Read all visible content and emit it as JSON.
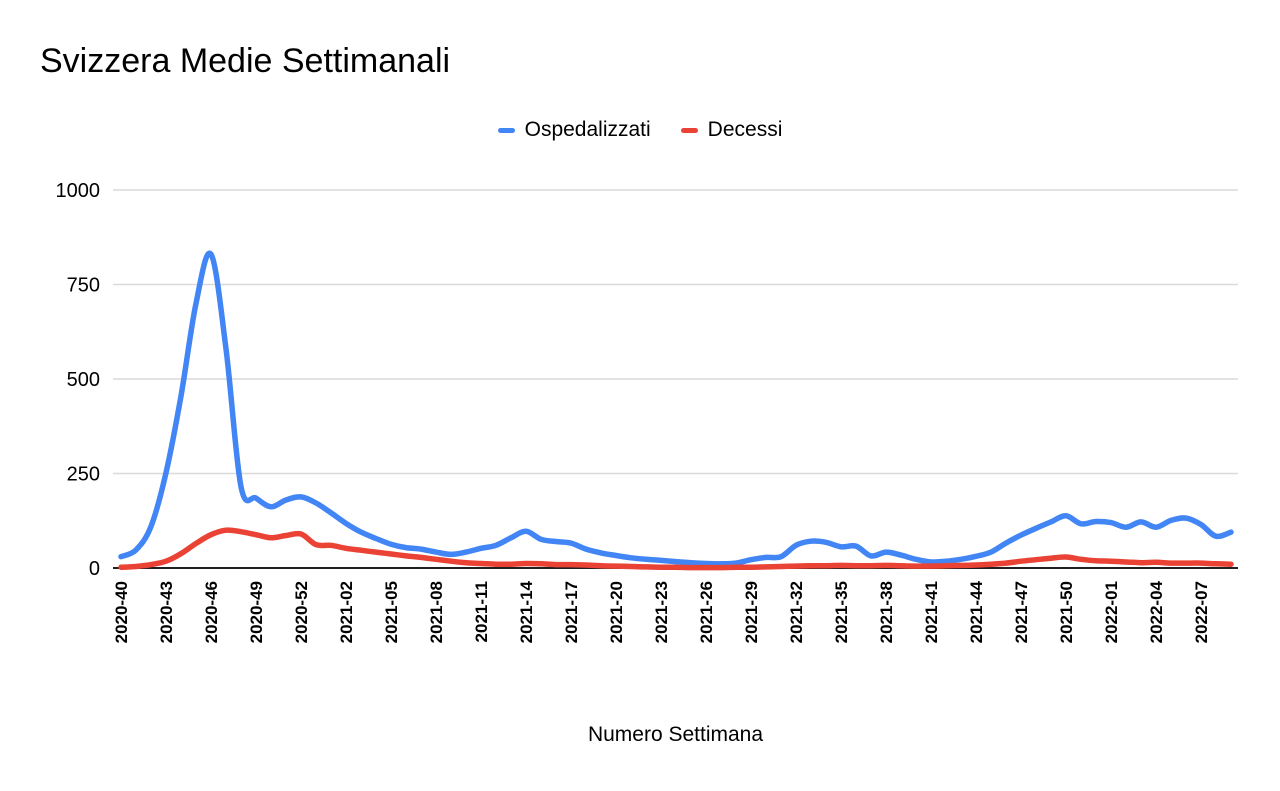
{
  "chart_data": {
    "type": "line",
    "title": "Svizzera Medie Settimanali",
    "xlabel": "Numero Settimana",
    "ylabel": "",
    "ylim": [
      0,
      1000
    ],
    "y_ticks": [
      0,
      250,
      500,
      750,
      1000
    ],
    "grid": true,
    "legend_position": "top-center",
    "line_style": "smooth",
    "colors": {
      "ospedalizzati": "#4285f4",
      "decessi": "#ea4335",
      "gridline": "#dadada",
      "axis_line": "#212121",
      "text": "#000000",
      "background": "#ffffff"
    },
    "categories": [
      "2020-40",
      "2020-41",
      "2020-42",
      "2020-43",
      "2020-44",
      "2020-45",
      "2020-46",
      "2020-47",
      "2020-48",
      "2020-49",
      "2020-50",
      "2020-51",
      "2020-52",
      "2020-53",
      "2021-01",
      "2021-02",
      "2021-03",
      "2021-04",
      "2021-05",
      "2021-06",
      "2021-07",
      "2021-08",
      "2021-09",
      "2021-10",
      "2021-11",
      "2021-12",
      "2021-13",
      "2021-14",
      "2021-15",
      "2021-16",
      "2021-17",
      "2021-18",
      "2021-19",
      "2021-20",
      "2021-21",
      "2021-22",
      "2021-23",
      "2021-24",
      "2021-25",
      "2021-26",
      "2021-27",
      "2021-28",
      "2021-29",
      "2021-30",
      "2021-31",
      "2021-32",
      "2021-33",
      "2021-34",
      "2021-35",
      "2021-36",
      "2021-37",
      "2021-38",
      "2021-39",
      "2021-40",
      "2021-41",
      "2021-42",
      "2021-43",
      "2021-44",
      "2021-45",
      "2021-46",
      "2021-47",
      "2021-48",
      "2021-49",
      "2021-50",
      "2021-51",
      "2021-52",
      "2022-01",
      "2022-02",
      "2022-03",
      "2022-04",
      "2022-05",
      "2022-06",
      "2022-07",
      "2022-08",
      "2022-09"
    ],
    "x_tick_labels": [
      "2020-40",
      "2020-43",
      "2020-46",
      "2020-49",
      "2020-52",
      "2021-02",
      "2021-05",
      "2021-08",
      "2021-11",
      "2021-14",
      "2021-17",
      "2021-20",
      "2021-23",
      "2021-26",
      "2021-29",
      "2021-32",
      "2021-35",
      "2021-38",
      "2021-41",
      "2021-44",
      "2021-47",
      "2021-50",
      "2022-01",
      "2022-04",
      "2022-07"
    ],
    "x_tick_step": 3,
    "series": [
      {
        "name": "Ospedalizzati",
        "color": "#4285f4",
        "values": [
          30,
          48,
          110,
          252,
          455,
          700,
          830,
          580,
          215,
          185,
          162,
          180,
          188,
          172,
          146,
          118,
          95,
          78,
          63,
          54,
          50,
          42,
          36,
          42,
          52,
          60,
          80,
          97,
          76,
          70,
          66,
          50,
          40,
          33,
          27,
          23,
          20,
          17,
          14,
          12,
          11,
          13,
          22,
          28,
          30,
          60,
          71,
          68,
          56,
          58,
          32,
          42,
          34,
          23,
          16,
          18,
          23,
          31,
          42,
          66,
          87,
          105,
          122,
          138,
          117,
          123,
          120,
          108,
          122,
          108,
          126,
          132,
          115,
          84,
          95
        ]
      },
      {
        "name": "Decessi",
        "color": "#ea4335",
        "values": [
          2,
          4,
          9,
          18,
          38,
          65,
          88,
          100,
          96,
          88,
          80,
          86,
          90,
          62,
          60,
          52,
          47,
          42,
          37,
          32,
          28,
          23,
          18,
          14,
          12,
          10,
          10,
          12,
          11,
          9,
          9,
          8,
          6,
          5,
          4,
          3,
          2,
          2,
          1,
          1,
          1,
          2,
          2,
          3,
          4,
          5,
          6,
          6,
          7,
          6,
          6,
          7,
          6,
          5,
          5,
          6,
          7,
          8,
          10,
          13,
          18,
          22,
          26,
          29,
          23,
          19,
          18,
          16,
          14,
          15,
          13,
          13,
          13,
          11,
          10
        ]
      }
    ]
  }
}
